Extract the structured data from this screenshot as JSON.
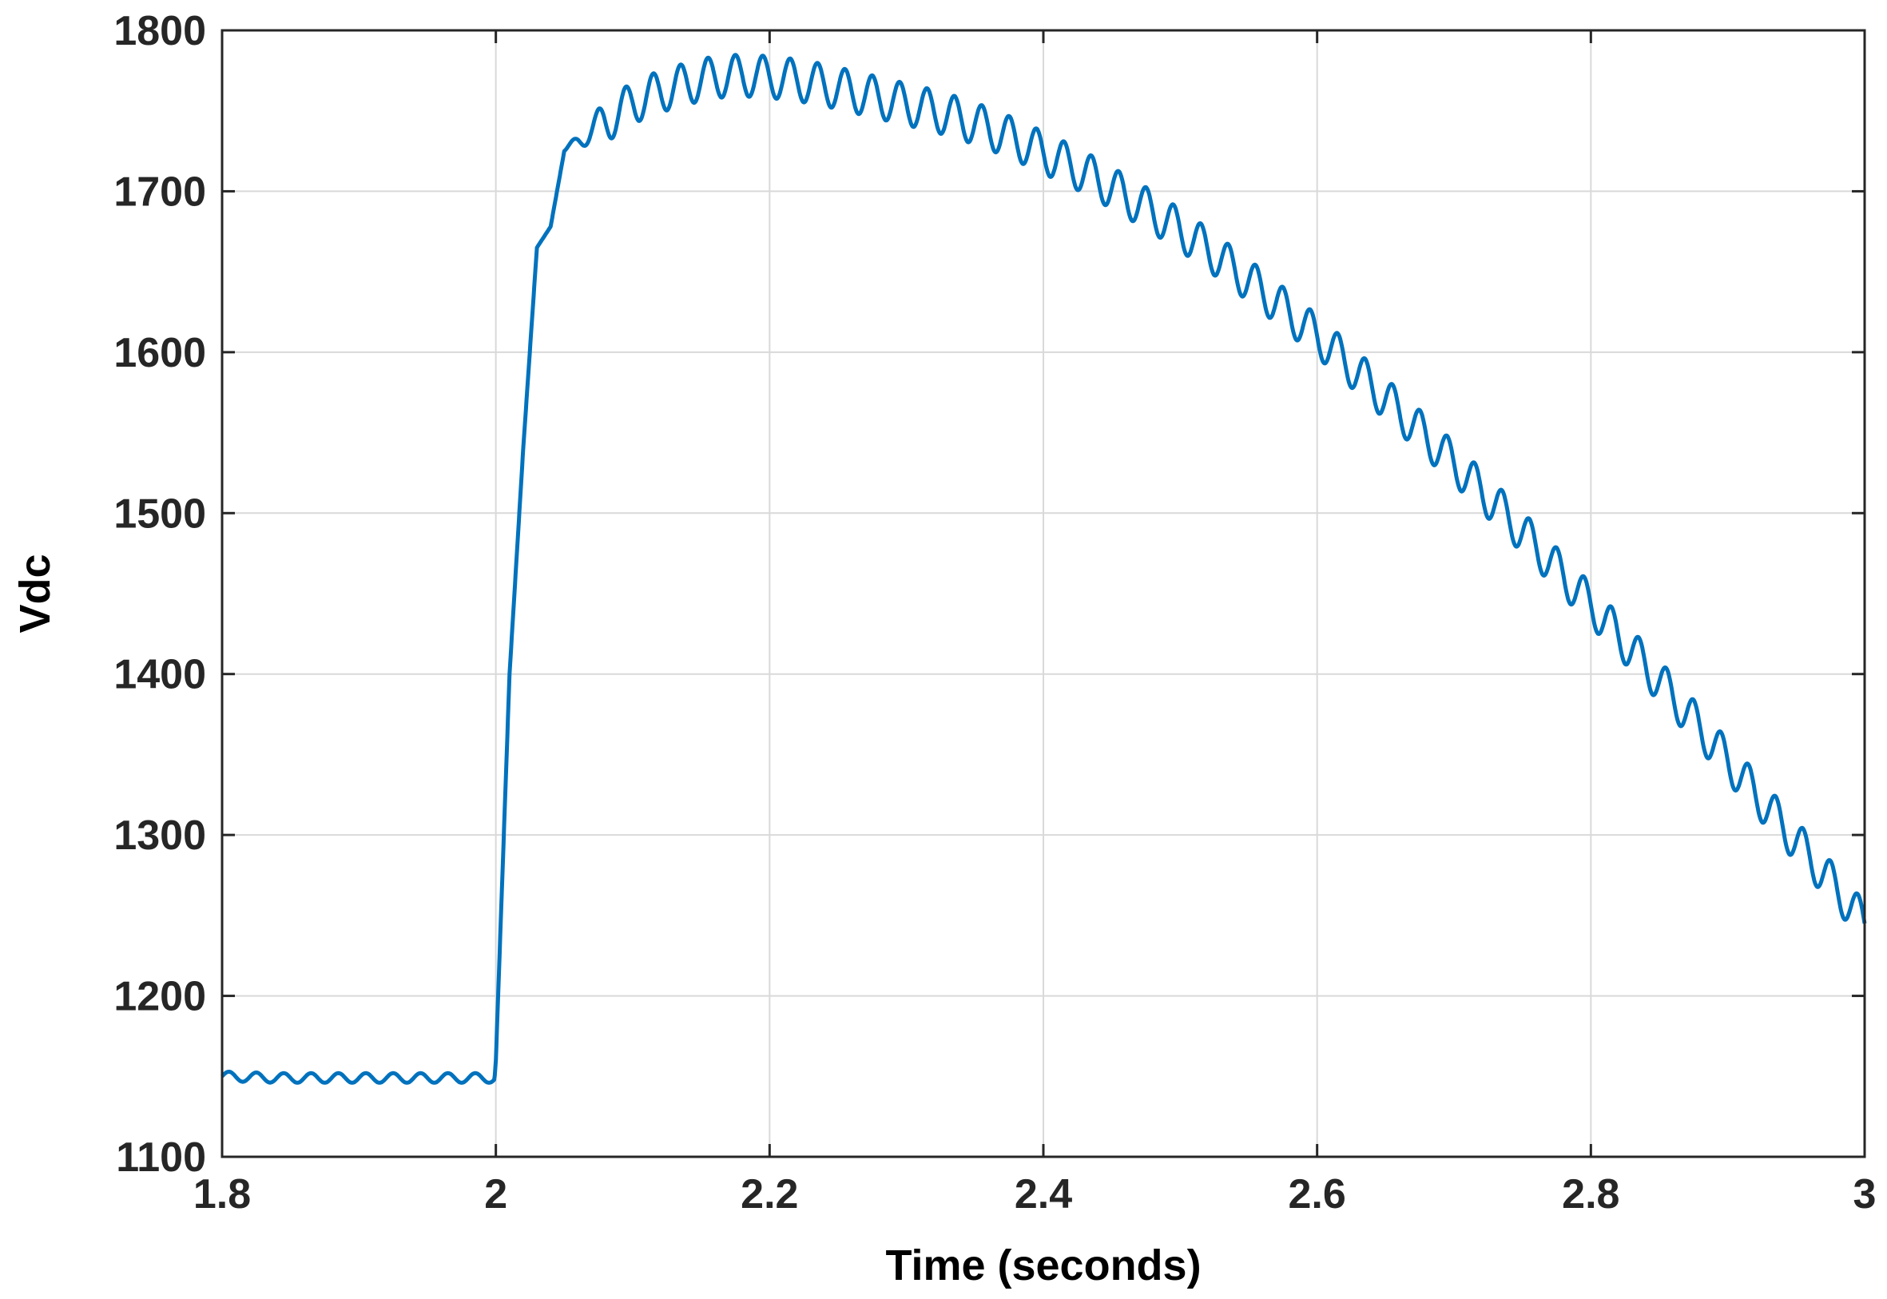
{
  "chart_data": {
    "type": "line",
    "xlabel": "Time (seconds)",
    "ylabel": "Vdc",
    "xlim": [
      1.8,
      3
    ],
    "ylim": [
      1100,
      1800
    ],
    "xticks": [
      1.8,
      2,
      2.2,
      2.4,
      2.6,
      2.8,
      3
    ],
    "xtick_labels": [
      "1.8",
      "2",
      "2.2",
      "2.4",
      "2.6",
      "2.8",
      "3"
    ],
    "yticks": [
      1100,
      1200,
      1300,
      1400,
      1500,
      1600,
      1700,
      1800
    ],
    "ytick_labels": [
      "1100",
      "1200",
      "1300",
      "1400",
      "1500",
      "1600",
      "1700",
      "1800"
    ],
    "grid": true,
    "line_color": "#0072BD",
    "series": [
      {
        "x": [
          1.8,
          1.84,
          1.88,
          1.92,
          1.96,
          1.999,
          2.0,
          2.01,
          2.02,
          2.03,
          2.04,
          2.05,
          2.06,
          2.08,
          2.1,
          2.12,
          2.14,
          2.16,
          2.18,
          2.2,
          2.22,
          2.24,
          2.26,
          2.28,
          2.3,
          2.32,
          2.34,
          2.36,
          2.38,
          2.4,
          2.42,
          2.44,
          2.46,
          2.48,
          2.5,
          2.52,
          2.54,
          2.56,
          2.58,
          2.6,
          2.62,
          2.64,
          2.66,
          2.68,
          2.7,
          2.72,
          2.74,
          2.76,
          2.78,
          2.8,
          2.82,
          2.84,
          2.86,
          2.88,
          2.9,
          2.92,
          2.94,
          2.96,
          2.98,
          3.0
        ],
        "y": [
          1150,
          1149,
          1149,
          1149,
          1149,
          1149,
          1160,
          1400,
          1540,
          1665,
          1678,
          1725,
          1732,
          1743,
          1755,
          1762,
          1767,
          1771,
          1772,
          1771,
          1769,
          1766,
          1762,
          1758,
          1754,
          1750,
          1745,
          1739,
          1732,
          1724,
          1716,
          1707,
          1697,
          1687,
          1676,
          1664,
          1651,
          1638,
          1624,
          1610,
          1595,
          1579,
          1563,
          1547,
          1531,
          1514,
          1497,
          1479,
          1461,
          1443,
          1424,
          1405,
          1386,
          1366,
          1346,
          1326,
          1306,
          1286,
          1266,
          1245
        ]
      }
    ]
  }
}
